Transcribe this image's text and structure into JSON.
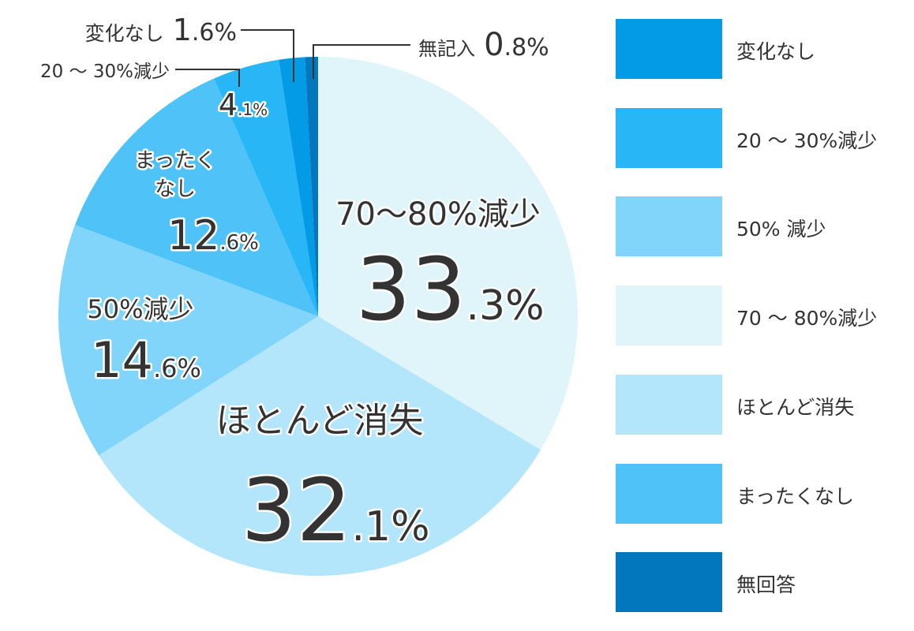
{
  "chart_data": {
    "type": "pie",
    "title": "",
    "slices": [
      {
        "name": "70～80%減少",
        "value": 33.3,
        "color": "#e0f5fa"
      },
      {
        "name": "ほとんど消失",
        "value": 32.1,
        "color": "#b3e5fb"
      },
      {
        "name": "50%減少",
        "value": 14.6,
        "color": "#81d4fa"
      },
      {
        "name": "まったくなし",
        "value": 12.6,
        "color": "#4fc3f7"
      },
      {
        "name": "20～30%減少",
        "value": 4.1,
        "color": "#29b6f6"
      },
      {
        "name": "変化なし",
        "value": 1.6,
        "color": "#039be5"
      },
      {
        "name": "無記入",
        "value": 0.8,
        "color": "#0277bd"
      }
    ],
    "slice_labels": {
      "s70": {
        "name": "70～80%減少",
        "int": "33",
        "dec": ".3%"
      },
      "gone": {
        "name": "ほとんど消失",
        "int": "32",
        "dec": ".1%"
      },
      "s50": {
        "name": "50%減少",
        "int": "14",
        "dec": ".6%"
      },
      "none1": "まったく",
      "none2": "なし",
      "none": {
        "int": "12",
        "dec": ".6%"
      },
      "s20": {
        "int": "4",
        "dec": ".1%"
      }
    },
    "callouts": {
      "nochange": {
        "name": "変化なし",
        "int": "1",
        "dec": ".6%"
      },
      "s20": {
        "name": "20 ～ 30%減少"
      },
      "blank": {
        "name": "無記入",
        "int": "0",
        "dec": ".8%"
      }
    },
    "legend": {
      "placement": "right",
      "items": [
        {
          "label": "変化なし",
          "color": "#039be5"
        },
        {
          "label": "20 ～ 30%減少",
          "color": "#29b6f6"
        },
        {
          "label": "50% 減少",
          "color": "#81d4fa"
        },
        {
          "label": "70 ～ 80%減少",
          "color": "#e0f5fa"
        },
        {
          "label": "ほとんど消失",
          "color": "#b3e5fb"
        },
        {
          "label": "まったくなし",
          "color": "#4fc3f7"
        },
        {
          "label": "無回答",
          "color": "#0277bd"
        }
      ]
    }
  }
}
